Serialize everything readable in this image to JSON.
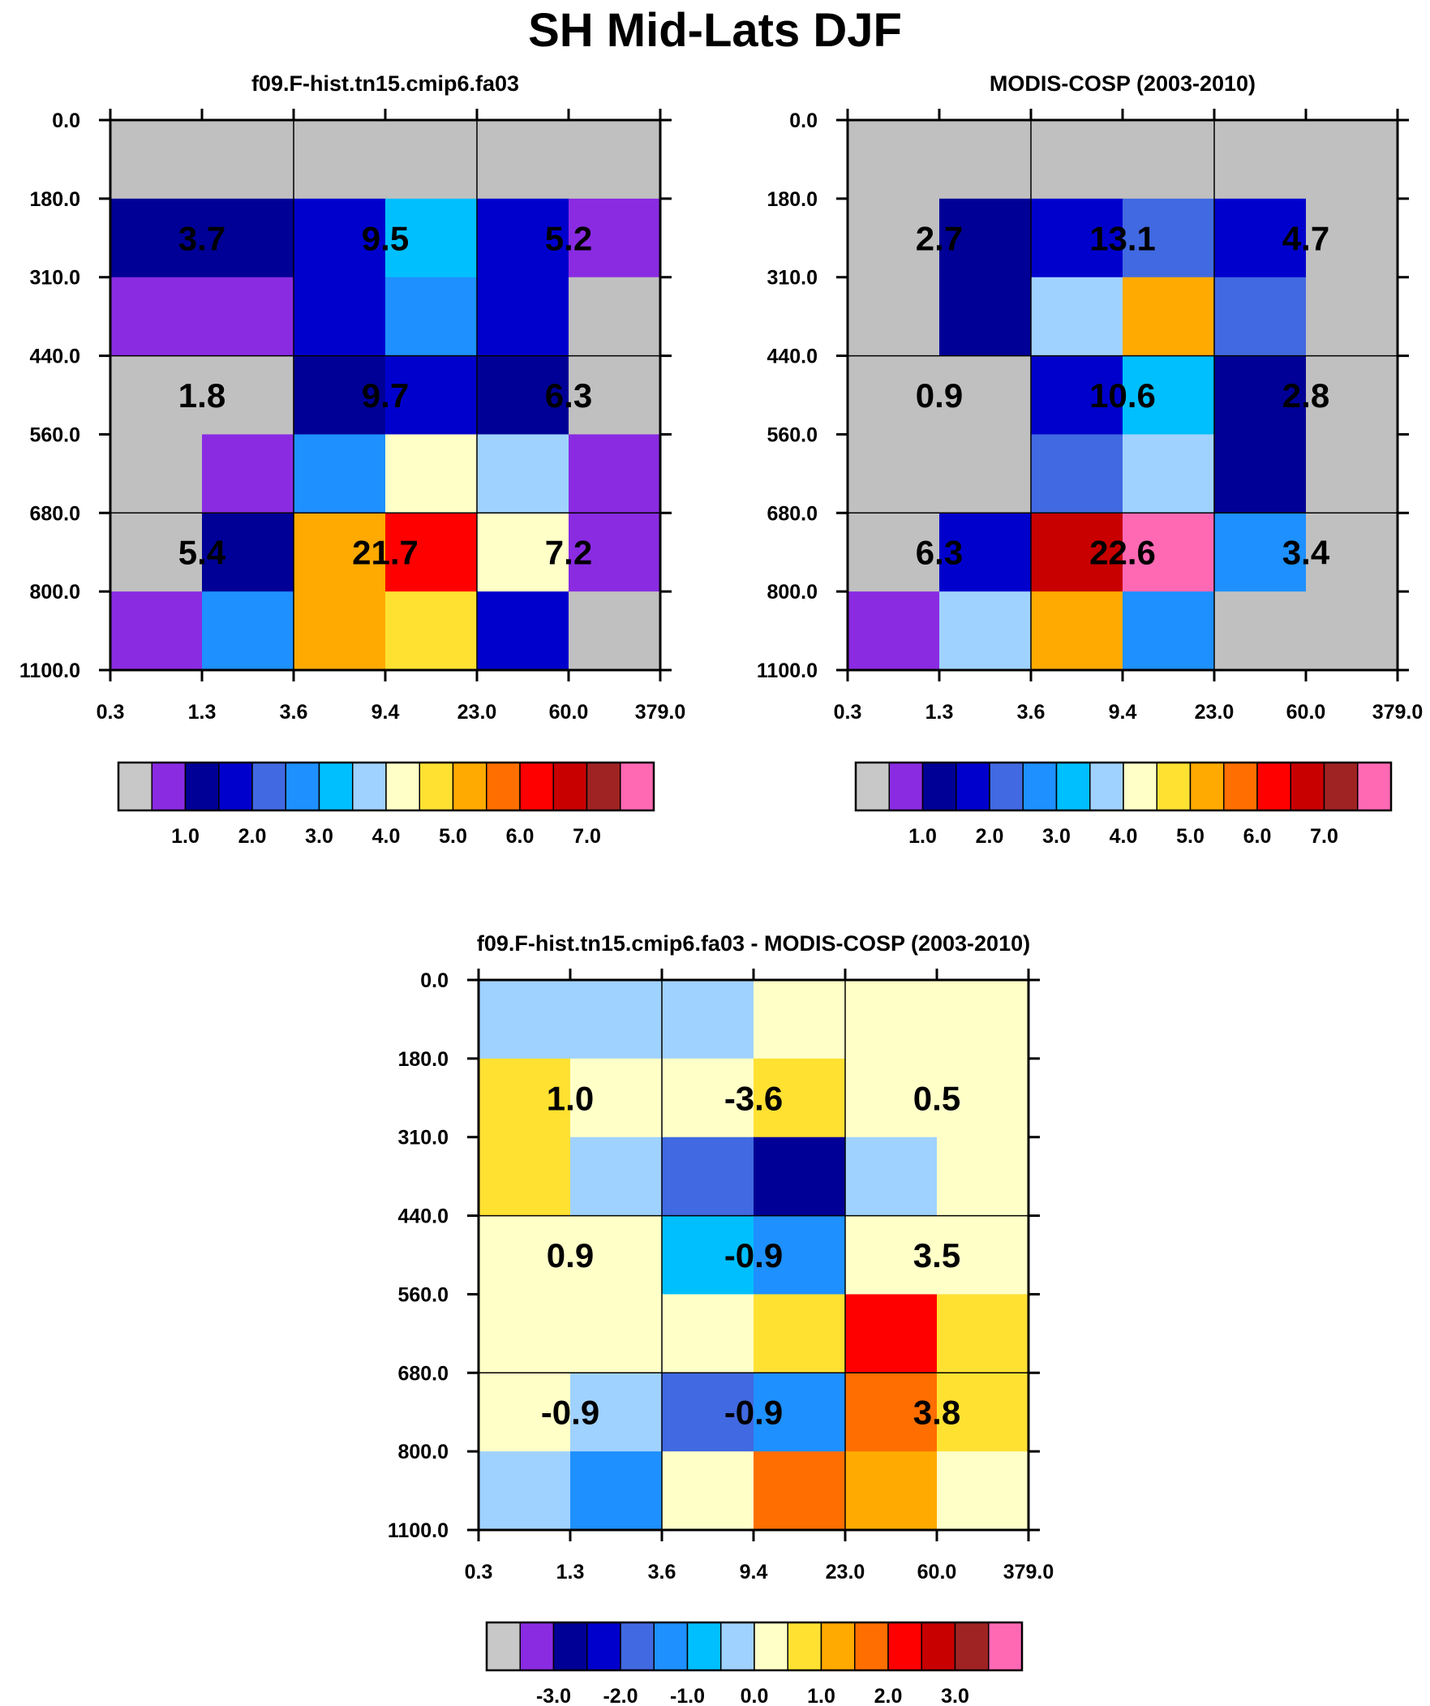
{
  "title": "SH Mid-Lats DJF",
  "colors": {
    "missing": "#c0c0c0",
    "palette": [
      "#c8c8c8",
      "#8a2be2",
      "#000096",
      "#0000cd",
      "#4169e1",
      "#1e90ff",
      "#00bfff",
      "#a0d2ff",
      "#ffffc8",
      "#ffe132",
      "#ffaa00",
      "#ff6e00",
      "#ff0000",
      "#c80000",
      "#a02323",
      "#ff69b4"
    ]
  },
  "chart_data": [
    {
      "type": "heatmap",
      "name": "model",
      "title": "f09.F-hist.tn15.cmip6.fa03",
      "xticks": [
        "0.3",
        "1.3",
        "3.6",
        "9.4",
        "23.0",
        "60.0",
        "379.0"
      ],
      "yticks": [
        "0.0",
        "180.0",
        "310.0",
        "440.0",
        "560.0",
        "680.0",
        "800.0",
        "1100.0"
      ],
      "cells": [
        [
          -1,
          -1,
          -1,
          -1,
          -1,
          -1
        ],
        [
          2,
          2,
          3,
          6,
          3,
          1
        ],
        [
          1,
          1,
          3,
          5,
          3,
          -1
        ],
        [
          -1,
          -1,
          2,
          3,
          2,
          -1
        ],
        [
          -1,
          1,
          5,
          8,
          7,
          1
        ],
        [
          -1,
          2,
          10,
          12,
          8,
          1
        ],
        [
          1,
          5,
          10,
          9,
          3,
          -1
        ]
      ],
      "labels": [
        {
          "text": "3.7",
          "col": 1,
          "row": 1
        },
        {
          "text": "9.5",
          "col": 3,
          "row": 1
        },
        {
          "text": "5.2",
          "col": 5,
          "row": 1
        },
        {
          "text": "1.8",
          "col": 1,
          "row": 3
        },
        {
          "text": "9.7",
          "col": 3,
          "row": 3
        },
        {
          "text": "6.3",
          "col": 5,
          "row": 3
        },
        {
          "text": "5.4",
          "col": 1,
          "row": 5
        },
        {
          "text": "21.7",
          "col": 3,
          "row": 5
        },
        {
          "text": "7.2",
          "col": 5,
          "row": 5
        }
      ],
      "colorbar": {
        "labels": [
          "1.0",
          "2.0",
          "3.0",
          "4.0",
          "5.0",
          "6.0",
          "7.0"
        ]
      }
    },
    {
      "type": "heatmap",
      "name": "obs",
      "title": "MODIS-COSP (2003-2010)",
      "xticks": [
        "0.3",
        "1.3",
        "3.6",
        "9.4",
        "23.0",
        "60.0",
        "379.0"
      ],
      "yticks": [
        "0.0",
        "180.0",
        "310.0",
        "440.0",
        "560.0",
        "680.0",
        "800.0",
        "1100.0"
      ],
      "cells": [
        [
          -1,
          -1,
          -1,
          -1,
          -1,
          -1
        ],
        [
          -1,
          2,
          3,
          4,
          3,
          -1
        ],
        [
          -1,
          2,
          7,
          10,
          4,
          -1
        ],
        [
          -1,
          -1,
          3,
          6,
          2,
          -1
        ],
        [
          -1,
          -1,
          4,
          7,
          2,
          -1
        ],
        [
          -1,
          3,
          13,
          15,
          5,
          -1
        ],
        [
          1,
          7,
          10,
          5,
          -1,
          -1
        ]
      ],
      "labels": [
        {
          "text": "2.7",
          "col": 1,
          "row": 1
        },
        {
          "text": "13.1",
          "col": 3,
          "row": 1
        },
        {
          "text": "4.7",
          "col": 5,
          "row": 1
        },
        {
          "text": "0.9",
          "col": 1,
          "row": 3
        },
        {
          "text": "10.6",
          "col": 3,
          "row": 3
        },
        {
          "text": "2.8",
          "col": 5,
          "row": 3
        },
        {
          "text": "6.3",
          "col": 1,
          "row": 5
        },
        {
          "text": "22.6",
          "col": 3,
          "row": 5
        },
        {
          "text": "3.4",
          "col": 5,
          "row": 5
        }
      ],
      "colorbar": {
        "labels": [
          "1.0",
          "2.0",
          "3.0",
          "4.0",
          "5.0",
          "6.0",
          "7.0"
        ]
      }
    },
    {
      "type": "heatmap",
      "name": "diff",
      "title": "f09.F-hist.tn15.cmip6.fa03 - MODIS-COSP (2003-2010)",
      "xticks": [
        "0.3",
        "1.3",
        "3.6",
        "9.4",
        "23.0",
        "60.0",
        "379.0"
      ],
      "yticks": [
        "0.0",
        "180.0",
        "310.0",
        "440.0",
        "560.0",
        "680.0",
        "800.0",
        "1100.0"
      ],
      "cells": [
        [
          7,
          7,
          7,
          8,
          8,
          8
        ],
        [
          9,
          8,
          8,
          9,
          8,
          8
        ],
        [
          9,
          7,
          4,
          2,
          7,
          8
        ],
        [
          8,
          8,
          6,
          5,
          8,
          8
        ],
        [
          8,
          8,
          8,
          9,
          12,
          9
        ],
        [
          8,
          7,
          4,
          5,
          11,
          9
        ],
        [
          7,
          5,
          8,
          11,
          10,
          8
        ]
      ],
      "labels": [
        {
          "text": "1.0",
          "col": 1,
          "row": 1
        },
        {
          "text": "-3.6",
          "col": 3,
          "row": 1
        },
        {
          "text": "0.5",
          "col": 5,
          "row": 1
        },
        {
          "text": "0.9",
          "col": 1,
          "row": 3
        },
        {
          "text": "-0.9",
          "col": 3,
          "row": 3
        },
        {
          "text": "3.5",
          "col": 5,
          "row": 3
        },
        {
          "text": "-0.9",
          "col": 1,
          "row": 5
        },
        {
          "text": "-0.9",
          "col": 3,
          "row": 5
        },
        {
          "text": "3.8",
          "col": 5,
          "row": 5
        }
      ],
      "colorbar": {
        "labels": [
          "-3.0",
          "-2.0",
          "-1.0",
          "0.0",
          "1.0",
          "2.0",
          "3.0"
        ]
      }
    }
  ]
}
